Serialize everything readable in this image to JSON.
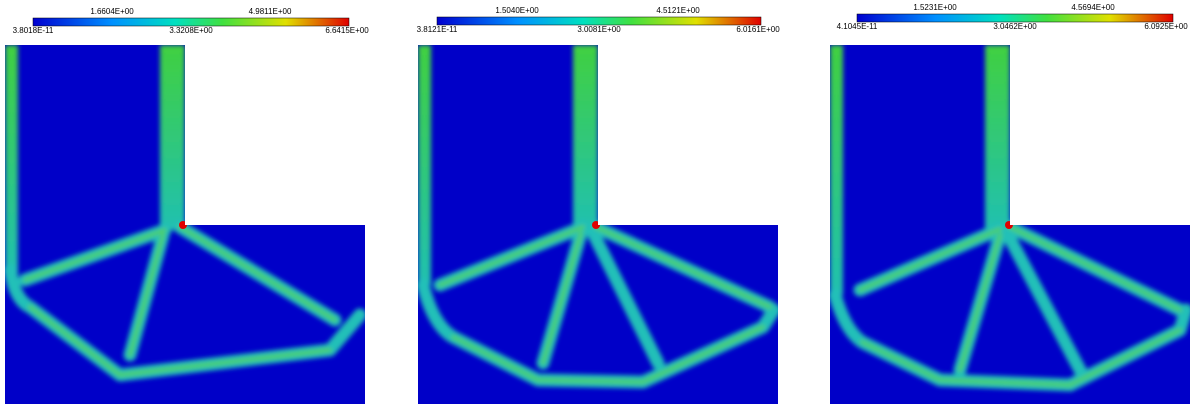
{
  "panels": [
    {
      "colorbar": {
        "top_labels": [
          "1.6604E+00",
          "4.9811E+00"
        ],
        "bottom_labels": [
          "3.8018E-11",
          "3.3208E+00",
          "6.6415E+00"
        ]
      }
    },
    {
      "colorbar": {
        "top_labels": [
          "1.5040E+00",
          "4.5121E+00"
        ],
        "bottom_labels": [
          "3.8121E-11",
          "3.0081E+00",
          "6.0161E+00"
        ]
      }
    },
    {
      "colorbar": {
        "top_labels": [
          "1.5231E+00",
          "4.5694E+00"
        ],
        "bottom_labels": [
          "4.1045E-11",
          "3.0462E+00",
          "6.0925E+00"
        ]
      }
    }
  ]
}
